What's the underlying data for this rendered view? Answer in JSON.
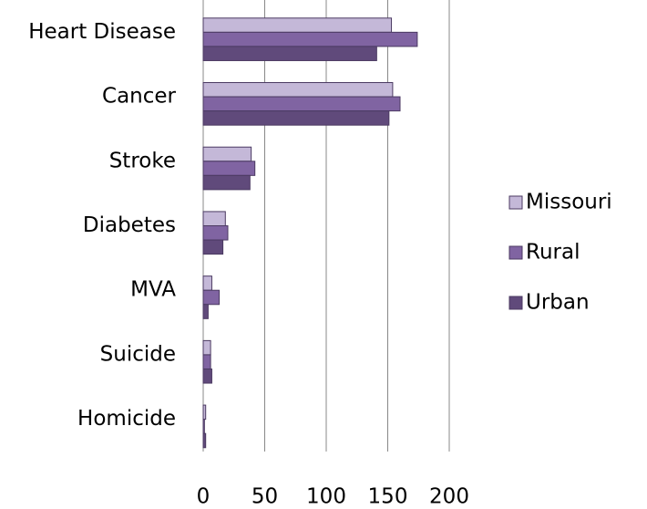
{
  "chart_data": {
    "type": "hbar",
    "categories": [
      "Heart Disease",
      "Cancer",
      "Stroke",
      "Diabetes",
      "MVA",
      "Suicide",
      "Homicide"
    ],
    "series": [
      {
        "name": "Missouri",
        "color": "#c4b8d8",
        "values": [
          153,
          154,
          39,
          18,
          7,
          6,
          2
        ]
      },
      {
        "name": "Rural",
        "color": "#8064a2",
        "values": [
          174,
          160,
          42,
          20,
          13,
          6,
          1
        ]
      },
      {
        "name": "Urban",
        "color": "#604a7b",
        "values": [
          141,
          151,
          38,
          16,
          4,
          7,
          2
        ]
      }
    ],
    "xlim": [
      0,
      200
    ],
    "xticks": [
      0,
      50,
      100,
      150,
      200
    ],
    "grid": true,
    "legend": "right"
  }
}
